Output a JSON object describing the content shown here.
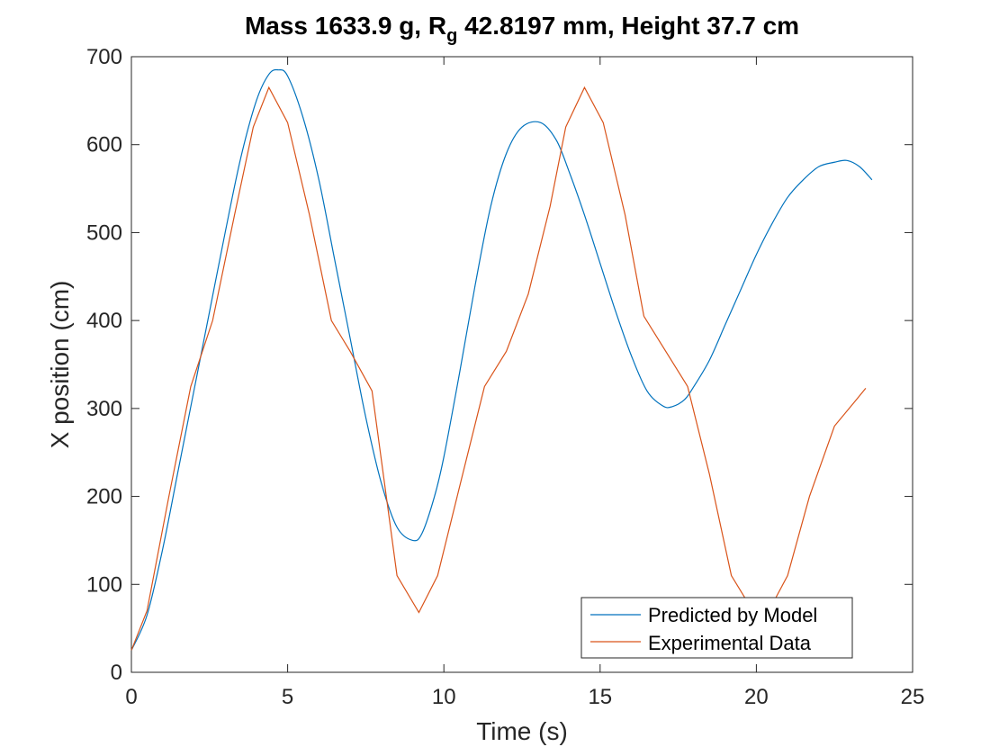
{
  "chart_data": {
    "type": "line",
    "title": {
      "prefix": "Mass 1633.9 g, R",
      "subscript": "g",
      "suffix": " 42.8197 mm,  Height 37.7 cm"
    },
    "xlabel": "Time (s)",
    "ylabel": "X position (cm)",
    "xlim": [
      0,
      25
    ],
    "ylim": [
      0,
      700
    ],
    "xticks": [
      0,
      5,
      10,
      15,
      20,
      25
    ],
    "yticks": [
      0,
      100,
      200,
      300,
      400,
      500,
      600,
      700
    ],
    "grid": false,
    "legend_position": "bottom-right",
    "series": [
      {
        "name": "Predicted by Model",
        "color": "#0072BD",
        "x": [
          0,
          0.5,
          1,
          1.5,
          2,
          2.5,
          3,
          3.5,
          4,
          4.4,
          4.7,
          5,
          5.5,
          6,
          6.5,
          7,
          7.5,
          8,
          8.5,
          9,
          9.3,
          9.7,
          10,
          10.5,
          11,
          11.5,
          12,
          12.5,
          13.1,
          13.6,
          14,
          14.5,
          15,
          15.5,
          16,
          16.5,
          17,
          17.3,
          17.7,
          18,
          18.5,
          19,
          19.5,
          20,
          20.5,
          21,
          21.5,
          22,
          22.5,
          22.9,
          23.3,
          23.7
        ],
        "y": [
          25,
          65,
          140,
          230,
          320,
          410,
          500,
          585,
          650,
          680,
          685,
          678,
          630,
          560,
          470,
          380,
          290,
          215,
          165,
          150,
          158,
          200,
          245,
          340,
          440,
          530,
          590,
          620,
          625,
          605,
          570,
          520,
          465,
          410,
          360,
          320,
          303,
          302,
          310,
          325,
          355,
          395,
          435,
          475,
          510,
          540,
          560,
          575,
          580,
          582,
          575,
          560
        ]
      },
      {
        "name": "Experimental Data",
        "color": "#D95319",
        "x": [
          0,
          0.5,
          1.2,
          1.9,
          2.6,
          3.3,
          3.9,
          4.4,
          5,
          5.7,
          6.4,
          7,
          7.7,
          8.5,
          9.2,
          9.8,
          10.6,
          11.3,
          12,
          12.7,
          13.4,
          13.9,
          14.5,
          15.1,
          15.8,
          16.4,
          17.1,
          17.8,
          18.5,
          19.2,
          19.8,
          20.4,
          21,
          21.7,
          22.5,
          23.2,
          23.5
        ],
        "y": [
          25,
          70,
          200,
          325,
          400,
          520,
          620,
          665,
          625,
          520,
          400,
          365,
          320,
          110,
          68,
          110,
          225,
          325,
          365,
          430,
          530,
          620,
          665,
          625,
          520,
          405,
          365,
          325,
          225,
          110,
          75,
          70,
          110,
          200,
          280,
          310,
          323
        ]
      }
    ]
  }
}
